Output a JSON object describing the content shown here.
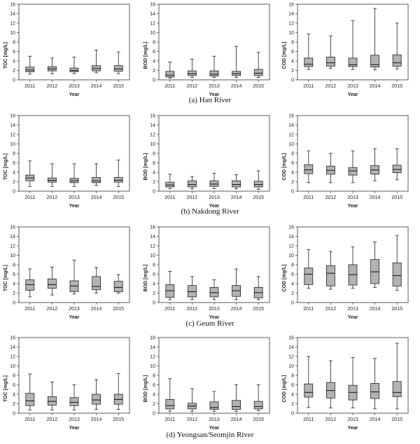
{
  "figure": {
    "captions": [
      "(a) Han River",
      "(b) Nakdong River",
      "(c) Geum River",
      "(d) Yeongsan/Seomjin River"
    ]
  },
  "chart_data": [
    {
      "type": "box",
      "row": 0,
      "col": 0,
      "xlabel": "Year",
      "ylabel": "TOC [mg/L]",
      "ylim": [
        0,
        16
      ],
      "yticks": [
        0,
        2,
        4,
        6,
        8,
        10,
        12,
        14,
        16
      ],
      "categories": [
        "2011",
        "2012",
        "2013",
        "2014",
        "2015"
      ],
      "boxes": [
        {
          "min": 1.2,
          "q1": 1.7,
          "median": 2.1,
          "q3": 2.7,
          "max": 5.0
        },
        {
          "min": 1.3,
          "q1": 1.9,
          "median": 2.3,
          "q3": 2.8,
          "max": 4.6
        },
        {
          "min": 1.3,
          "q1": 1.7,
          "median": 2.0,
          "q3": 2.5,
          "max": 4.8
        },
        {
          "min": 1.5,
          "q1": 1.9,
          "median": 2.4,
          "q3": 3.0,
          "max": 6.3
        },
        {
          "min": 1.3,
          "q1": 1.8,
          "median": 2.3,
          "q3": 3.0,
          "max": 5.9
        }
      ]
    },
    {
      "type": "box",
      "row": 0,
      "col": 1,
      "xlabel": "Year",
      "ylabel": "BOD [mg/L]",
      "ylim": [
        0,
        16
      ],
      "yticks": [
        0,
        2,
        4,
        6,
        8,
        10,
        12,
        14,
        16
      ],
      "categories": [
        "2011",
        "2012",
        "2013",
        "2014",
        "2015"
      ],
      "boxes": [
        {
          "min": 0.4,
          "q1": 0.6,
          "median": 1.0,
          "q3": 1.8,
          "max": 3.8
        },
        {
          "min": 0.5,
          "q1": 0.9,
          "median": 1.3,
          "q3": 1.9,
          "max": 4.4
        },
        {
          "min": 0.5,
          "q1": 0.8,
          "median": 1.2,
          "q3": 1.9,
          "max": 5.0
        },
        {
          "min": 0.5,
          "q1": 0.9,
          "median": 1.3,
          "q3": 1.8,
          "max": 7.1
        },
        {
          "min": 0.5,
          "q1": 0.9,
          "median": 1.4,
          "q3": 2.2,
          "max": 5.8
        }
      ]
    },
    {
      "type": "box",
      "row": 0,
      "col": 2,
      "xlabel": "Year",
      "ylabel": "COD [mg/L]",
      "ylim": [
        0,
        16
      ],
      "yticks": [
        0,
        2,
        4,
        6,
        8,
        10,
        12,
        14,
        16
      ],
      "categories": [
        "2011",
        "2012",
        "2013",
        "2014",
        "2015"
      ],
      "boxes": [
        {
          "min": 2.2,
          "q1": 2.8,
          "median": 3.3,
          "q3": 4.6,
          "max": 9.7
        },
        {
          "min": 2.4,
          "q1": 2.9,
          "median": 3.6,
          "q3": 4.8,
          "max": 9.3
        },
        {
          "min": 2.2,
          "q1": 2.8,
          "median": 3.2,
          "q3": 4.6,
          "max": 12.5
        },
        {
          "min": 2.1,
          "q1": 2.7,
          "median": 3.2,
          "q3": 5.2,
          "max": 15.1
        },
        {
          "min": 2.3,
          "q1": 2.9,
          "median": 3.6,
          "q3": 5.3,
          "max": 12.0
        }
      ]
    },
    {
      "type": "box",
      "row": 1,
      "col": 0,
      "xlabel": "Year",
      "ylabel": "TOC [mg/L]",
      "ylim": [
        0,
        16
      ],
      "yticks": [
        0,
        2,
        4,
        6,
        8,
        10,
        12,
        14,
        16
      ],
      "categories": [
        "2011",
        "2012",
        "2013",
        "2014",
        "2015"
      ],
      "boxes": [
        {
          "min": 1.0,
          "q1": 2.2,
          "median": 2.8,
          "q3": 3.4,
          "max": 6.4
        },
        {
          "min": 1.0,
          "q1": 1.9,
          "median": 2.3,
          "q3": 2.8,
          "max": 5.8
        },
        {
          "min": 1.0,
          "q1": 1.8,
          "median": 2.2,
          "q3": 2.7,
          "max": 5.8
        },
        {
          "min": 1.2,
          "q1": 1.8,
          "median": 2.2,
          "q3": 2.9,
          "max": 5.8
        },
        {
          "min": 1.0,
          "q1": 1.9,
          "median": 2.3,
          "q3": 2.9,
          "max": 6.6
        }
      ]
    },
    {
      "type": "box",
      "row": 1,
      "col": 1,
      "xlabel": "Year",
      "ylabel": "BOD [mg/L]",
      "ylim": [
        0,
        16
      ],
      "yticks": [
        0,
        2,
        4,
        6,
        8,
        10,
        12,
        14,
        16
      ],
      "categories": [
        "2011",
        "2012",
        "2013",
        "2014",
        "2015"
      ],
      "boxes": [
        {
          "min": 0.5,
          "q1": 0.9,
          "median": 1.3,
          "q3": 1.9,
          "max": 3.6
        },
        {
          "min": 0.5,
          "q1": 0.9,
          "median": 1.4,
          "q3": 2.2,
          "max": 3.1
        },
        {
          "min": 0.5,
          "q1": 1.0,
          "median": 1.5,
          "q3": 2.2,
          "max": 3.8
        },
        {
          "min": 0.5,
          "q1": 0.9,
          "median": 1.4,
          "q3": 2.2,
          "max": 3.5
        },
        {
          "min": 0.4,
          "q1": 0.9,
          "median": 1.4,
          "q3": 2.1,
          "max": 4.3
        }
      ]
    },
    {
      "type": "box",
      "row": 1,
      "col": 2,
      "xlabel": "Year",
      "ylabel": "COD [mg/L]",
      "ylim": [
        0,
        16
      ],
      "yticks": [
        0,
        2,
        4,
        6,
        8,
        10,
        12,
        14,
        16
      ],
      "categories": [
        "2011",
        "2012",
        "2013",
        "2014",
        "2015"
      ],
      "boxes": [
        {
          "min": 1.8,
          "q1": 3.7,
          "median": 4.5,
          "q3": 5.6,
          "max": 8.5
        },
        {
          "min": 1.8,
          "q1": 3.6,
          "median": 4.4,
          "q3": 5.3,
          "max": 8.0
        },
        {
          "min": 1.8,
          "q1": 3.4,
          "median": 4.3,
          "q3": 5.0,
          "max": 8.5
        },
        {
          "min": 2.2,
          "q1": 3.6,
          "median": 4.5,
          "q3": 5.4,
          "max": 9.0
        },
        {
          "min": 2.4,
          "q1": 3.9,
          "median": 4.6,
          "q3": 5.5,
          "max": 9.0
        }
      ]
    },
    {
      "type": "box",
      "row": 2,
      "col": 0,
      "xlabel": "Year",
      "ylabel": "TOC [mg/L]",
      "ylim": [
        0,
        16
      ],
      "yticks": [
        0,
        2,
        4,
        6,
        8,
        10,
        12,
        14,
        16
      ],
      "categories": [
        "2011",
        "2012",
        "2013",
        "2014",
        "2015"
      ],
      "boxes": [
        {
          "min": 1.2,
          "q1": 2.6,
          "median": 3.8,
          "q3": 4.8,
          "max": 7.1
        },
        {
          "min": 1.6,
          "q1": 3.0,
          "median": 3.8,
          "q3": 5.0,
          "max": 7.5
        },
        {
          "min": 1.8,
          "q1": 2.3,
          "median": 3.5,
          "q3": 4.6,
          "max": 9.0
        },
        {
          "min": 2.0,
          "q1": 2.7,
          "median": 3.4,
          "q3": 5.5,
          "max": 7.4
        },
        {
          "min": 2.0,
          "q1": 2.3,
          "median": 3.2,
          "q3": 4.5,
          "max": 5.9
        }
      ]
    },
    {
      "type": "box",
      "row": 2,
      "col": 1,
      "xlabel": "Year",
      "ylabel": "BOD [mg/L]",
      "ylim": [
        0,
        16
      ],
      "yticks": [
        0,
        2,
        4,
        6,
        8,
        10,
        12,
        14,
        16
      ],
      "categories": [
        "2011",
        "2012",
        "2013",
        "2014",
        "2015"
      ],
      "boxes": [
        {
          "min": 0.6,
          "q1": 1.1,
          "median": 2.5,
          "q3": 3.8,
          "max": 6.6
        },
        {
          "min": 0.6,
          "q1": 1.2,
          "median": 2.3,
          "q3": 3.6,
          "max": 5.5
        },
        {
          "min": 0.6,
          "q1": 1.2,
          "median": 2.1,
          "q3": 3.2,
          "max": 4.8
        },
        {
          "min": 0.6,
          "q1": 1.3,
          "median": 2.5,
          "q3": 3.6,
          "max": 7.1
        },
        {
          "min": 0.6,
          "q1": 1.0,
          "median": 2.1,
          "q3": 3.2,
          "max": 5.5
        }
      ]
    },
    {
      "type": "box",
      "row": 2,
      "col": 2,
      "xlabel": "Year",
      "ylabel": "COD [mg/L]",
      "ylim": [
        0,
        16
      ],
      "yticks": [
        0,
        2,
        4,
        6,
        8,
        10,
        12,
        14,
        16
      ],
      "categories": [
        "2011",
        "2012",
        "2013",
        "2014",
        "2015"
      ],
      "boxes": [
        {
          "min": 3.0,
          "q1": 3.8,
          "median": 6.0,
          "q3": 7.3,
          "max": 11.2
        },
        {
          "min": 2.8,
          "q1": 3.5,
          "median": 6.2,
          "q3": 7.8,
          "max": 10.8
        },
        {
          "min": 3.0,
          "q1": 3.7,
          "median": 5.9,
          "q3": 8.0,
          "max": 11.8
        },
        {
          "min": 3.2,
          "q1": 4.0,
          "median": 6.5,
          "q3": 9.1,
          "max": 12.8
        },
        {
          "min": 2.6,
          "q1": 3.5,
          "median": 5.7,
          "q3": 8.4,
          "max": 14.2
        }
      ]
    },
    {
      "type": "box",
      "row": 3,
      "col": 0,
      "xlabel": "Year",
      "ylabel": "TOC [mg/L]",
      "ylim": [
        0,
        16
      ],
      "yticks": [
        0,
        2,
        4,
        6,
        8,
        10,
        12,
        14,
        16
      ],
      "categories": [
        "2011",
        "2012",
        "2013",
        "2014",
        "2015"
      ],
      "boxes": [
        {
          "min": 0.7,
          "q1": 1.6,
          "median": 2.6,
          "q3": 4.2,
          "max": 8.3
        },
        {
          "min": 0.7,
          "q1": 1.7,
          "median": 2.5,
          "q3": 3.5,
          "max": 6.6
        },
        {
          "min": 0.7,
          "q1": 1.6,
          "median": 2.3,
          "q3": 3.3,
          "max": 6.0
        },
        {
          "min": 0.8,
          "q1": 1.9,
          "median": 2.8,
          "q3": 4.0,
          "max": 7.1
        },
        {
          "min": 0.8,
          "q1": 1.9,
          "median": 2.9,
          "q3": 4.0,
          "max": 8.4
        }
      ]
    },
    {
      "type": "box",
      "row": 3,
      "col": 1,
      "xlabel": "Year",
      "ylabel": "BOD [mg/L]",
      "ylim": [
        0,
        16
      ],
      "yticks": [
        0,
        2,
        4,
        6,
        8,
        10,
        12,
        14,
        16
      ],
      "categories": [
        "2011",
        "2012",
        "2013",
        "2014",
        "2015"
      ],
      "boxes": [
        {
          "min": 0.4,
          "q1": 0.9,
          "median": 1.6,
          "q3": 2.9,
          "max": 7.3
        },
        {
          "min": 0.4,
          "q1": 0.9,
          "median": 1.5,
          "q3": 2.1,
          "max": 5.2
        },
        {
          "min": 0.4,
          "q1": 0.8,
          "median": 1.2,
          "q3": 2.4,
          "max": 4.6
        },
        {
          "min": 0.4,
          "q1": 0.8,
          "median": 1.4,
          "q3": 2.7,
          "max": 6.0
        },
        {
          "min": 0.5,
          "q1": 0.9,
          "median": 1.4,
          "q3": 2.5,
          "max": 6.0
        }
      ]
    },
    {
      "type": "box",
      "row": 3,
      "col": 2,
      "xlabel": "Year",
      "ylabel": "COD [mg/L]",
      "ylim": [
        0,
        16
      ],
      "yticks": [
        0,
        2,
        4,
        6,
        8,
        10,
        12,
        14,
        16
      ],
      "categories": [
        "2011",
        "2012",
        "2013",
        "2014",
        "2015"
      ],
      "boxes": [
        {
          "min": 1.2,
          "q1": 3.4,
          "median": 4.4,
          "q3": 6.2,
          "max": 12.0
        },
        {
          "min": 1.1,
          "q1": 3.2,
          "median": 4.8,
          "q3": 6.5,
          "max": 11.1
        },
        {
          "min": 1.1,
          "q1": 2.8,
          "median": 4.4,
          "q3": 5.9,
          "max": 11.8
        },
        {
          "min": 0.9,
          "q1": 3.1,
          "median": 4.5,
          "q3": 6.3,
          "max": 11.6
        },
        {
          "min": 0.9,
          "q1": 3.5,
          "median": 4.4,
          "q3": 6.7,
          "max": 14.8
        }
      ]
    }
  ]
}
